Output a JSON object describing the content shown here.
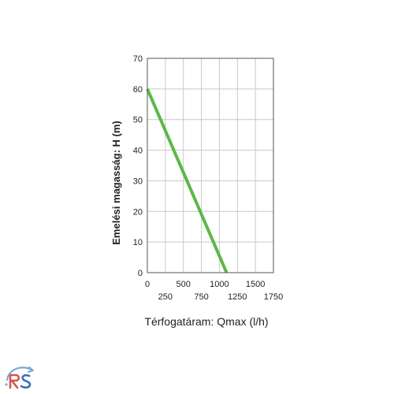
{
  "chart_data": {
    "type": "line",
    "xlabel": "Térfogatáram: Qmax (l/h)",
    "ylabel": "Emelési magasság: H (m)",
    "xlim": [
      0,
      1750
    ],
    "ylim": [
      0,
      70
    ],
    "x_ticks": [
      0,
      250,
      500,
      750,
      1000,
      1250,
      1500,
      1750
    ],
    "x_tick_labels": [
      "0",
      "250",
      "500",
      "750",
      "1000",
      "1250",
      "1500",
      "1750"
    ],
    "y_ticks": [
      0,
      10,
      20,
      30,
      40,
      50,
      60,
      70
    ],
    "y_tick_labels": [
      "0",
      "10",
      "20",
      "30",
      "40",
      "50",
      "60",
      "70"
    ],
    "grid": true,
    "series": [
      {
        "color": "#5cb847",
        "x": [
          0,
          1100
        ],
        "y": [
          60,
          0
        ]
      }
    ]
  }
}
